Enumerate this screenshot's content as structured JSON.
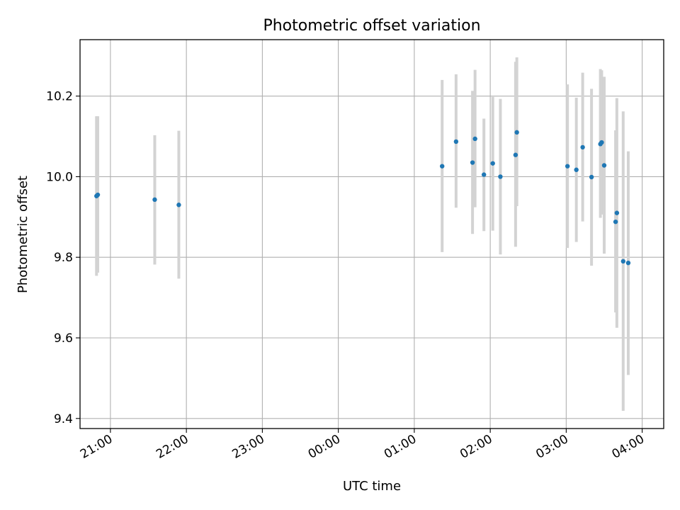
{
  "chart_data": {
    "type": "scatter",
    "title": "Photometric offset variation",
    "xlabel": "UTC time",
    "ylabel": "Photometric offset",
    "xlim": [
      "20:36",
      "04:17"
    ],
    "ylim": [
      9.375,
      10.34
    ],
    "xticks": [
      "21:00",
      "22:00",
      "23:00",
      "00:00",
      "01:00",
      "02:00",
      "03:00",
      "04:00"
    ],
    "yticks": [
      "9.4",
      "9.6",
      "9.8",
      "10.0",
      "10.2"
    ],
    "grid": true,
    "point_color": "#1f77b4",
    "errorbar_color": "#d3d3d3",
    "series": [
      {
        "points": [
          {
            "x": "20:49",
            "y": 9.952,
            "ylo": 9.754,
            "yhi": 10.15
          },
          {
            "x": "20:50",
            "y": 9.955,
            "ylo": 9.762,
            "yhi": 10.15
          },
          {
            "x": "21:35",
            "y": 9.943,
            "ylo": 9.782,
            "yhi": 10.103
          },
          {
            "x": "21:54",
            "y": 9.93,
            "ylo": 9.747,
            "yhi": 10.114
          },
          {
            "x": "01:22",
            "y": 10.026,
            "ylo": 9.813,
            "yhi": 10.24
          },
          {
            "x": "01:33",
            "y": 10.087,
            "ylo": 9.923,
            "yhi": 10.254
          },
          {
            "x": "01:46",
            "y": 10.035,
            "ylo": 9.858,
            "yhi": 10.213
          },
          {
            "x": "01:48",
            "y": 10.094,
            "ylo": 9.924,
            "yhi": 10.265
          },
          {
            "x": "01:55",
            "y": 10.005,
            "ylo": 9.865,
            "yhi": 10.144
          },
          {
            "x": "02:02",
            "y": 10.033,
            "ylo": 9.866,
            "yhi": 10.198
          },
          {
            "x": "02:08",
            "y": 10.0,
            "ylo": 9.807,
            "yhi": 10.193
          },
          {
            "x": "02:20",
            "y": 10.054,
            "ylo": 9.826,
            "yhi": 10.285
          },
          {
            "x": "02:21",
            "y": 10.11,
            "ylo": 9.927,
            "yhi": 10.296
          },
          {
            "x": "03:01",
            "y": 10.026,
            "ylo": 9.823,
            "yhi": 10.229
          },
          {
            "x": "03:08",
            "y": 10.017,
            "ylo": 9.838,
            "yhi": 10.196
          },
          {
            "x": "03:13",
            "y": 10.073,
            "ylo": 9.889,
            "yhi": 10.258
          },
          {
            "x": "03:20",
            "y": 9.999,
            "ylo": 9.779,
            "yhi": 10.218
          },
          {
            "x": "03:27",
            "y": 10.081,
            "ylo": 9.898,
            "yhi": 10.267
          },
          {
            "x": "03:28",
            "y": 10.085,
            "ylo": 9.906,
            "yhi": 10.264
          },
          {
            "x": "03:30",
            "y": 10.028,
            "ylo": 9.809,
            "yhi": 10.248
          },
          {
            "x": "03:39",
            "y": 9.888,
            "ylo": 9.663,
            "yhi": 10.115
          },
          {
            "x": "03:40",
            "y": 9.91,
            "ylo": 9.625,
            "yhi": 10.195
          },
          {
            "x": "03:45",
            "y": 9.79,
            "ylo": 9.419,
            "yhi": 10.162
          },
          {
            "x": "03:49",
            "y": 9.786,
            "ylo": 9.508,
            "yhi": 10.063
          }
        ]
      }
    ]
  }
}
